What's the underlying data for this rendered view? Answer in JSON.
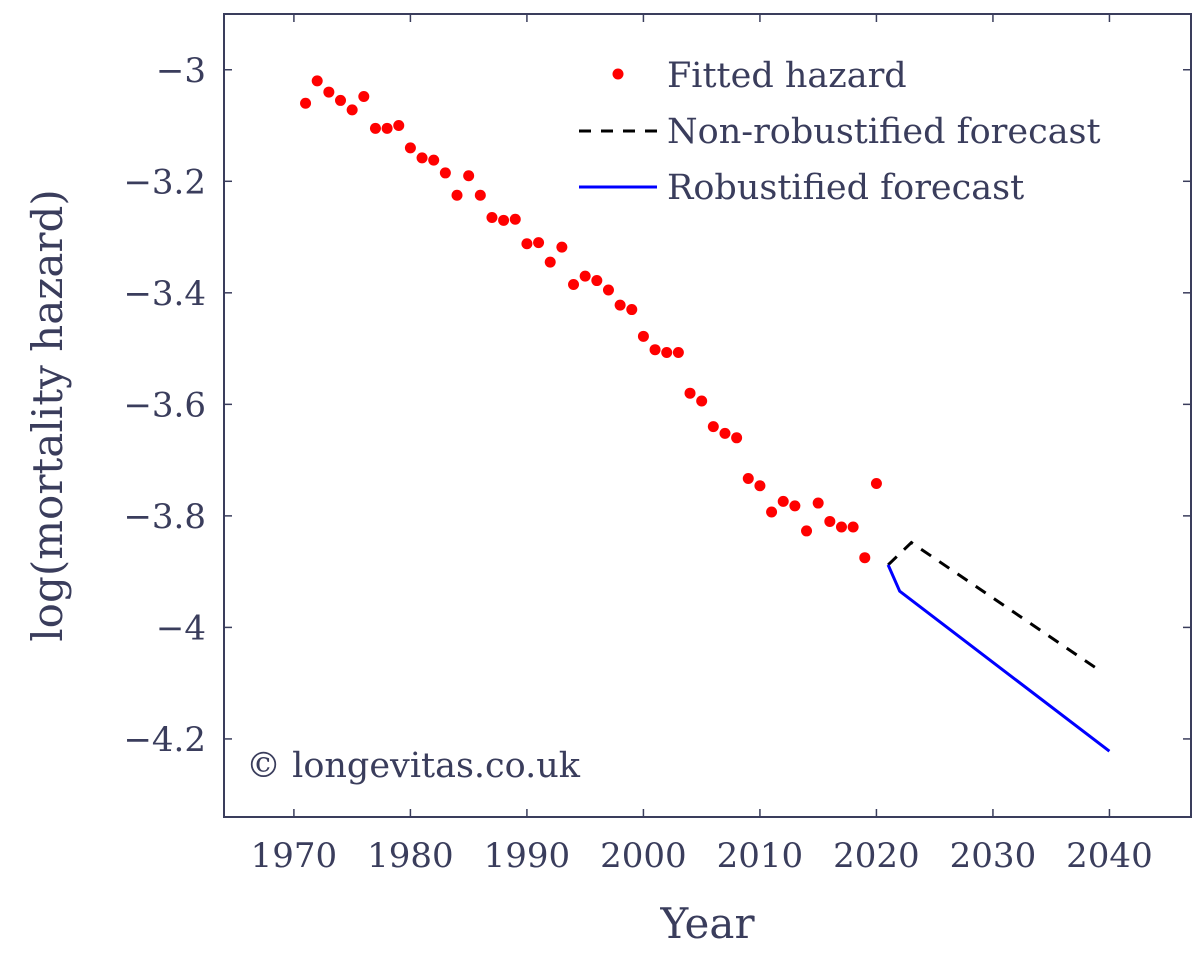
{
  "chart_data": {
    "type": "scatter",
    "title": "",
    "xlabel": "Year",
    "ylabel": "log(mortality hazard)",
    "xlim": [
      1964,
      2047
    ],
    "ylim": [
      -4.34,
      -2.9
    ],
    "x_ticks": [
      1970,
      1980,
      1990,
      2000,
      2010,
      2020,
      2030,
      2040
    ],
    "y_ticks": [
      -3,
      -3.2,
      -3.4,
      -3.6,
      -3.8,
      -4,
      -4.2
    ],
    "y_tick_labels": [
      "−3",
      "−3.2",
      "−3.4",
      "−3.6",
      "−3.8",
      "−4",
      "−4.2"
    ],
    "grid": false,
    "legend_position": "top-right",
    "series": [
      {
        "name": "Fitted hazard",
        "style": "markers",
        "color": "#ff0000",
        "x": [
          1971,
          1972,
          1973,
          1974,
          1975,
          1976,
          1977,
          1978,
          1979,
          1980,
          1981,
          1982,
          1983,
          1984,
          1985,
          1986,
          1987,
          1988,
          1989,
          1990,
          1991,
          1992,
          1993,
          1994,
          1995,
          1996,
          1997,
          1998,
          1999,
          2000,
          2001,
          2002,
          2003,
          2004,
          2005,
          2006,
          2007,
          2008,
          2009,
          2010,
          2011,
          2012,
          2013,
          2014,
          2015,
          2016,
          2017,
          2018,
          2019,
          2020
        ],
        "y": [
          -3.06,
          -3.02,
          -3.04,
          -3.055,
          -3.072,
          -3.048,
          -3.105,
          -3.105,
          -3.1,
          -3.14,
          -3.158,
          -3.162,
          -3.185,
          -3.225,
          -3.19,
          -3.225,
          -3.265,
          -3.27,
          -3.268,
          -3.312,
          -3.31,
          -3.345,
          -3.318,
          -3.385,
          -3.37,
          -3.378,
          -3.395,
          -3.422,
          -3.43,
          -3.478,
          -3.502,
          -3.507,
          -3.507,
          -3.58,
          -3.594,
          -3.64,
          -3.652,
          -3.66,
          -3.733,
          -3.746,
          -3.793,
          -3.774,
          -3.782,
          -3.827,
          -3.777,
          -3.81,
          -3.82,
          -3.82,
          -3.875,
          -3.742
        ]
      },
      {
        "name": "Non-robustified forecast",
        "style": "dashed",
        "color": "#000000",
        "x": [
          2021,
          2023,
          2039
        ],
        "y": [
          -3.888,
          -3.848,
          -4.075
        ]
      },
      {
        "name": "Robustified forecast",
        "style": "solid",
        "color": "#0000ff",
        "x": [
          2021,
          2022,
          2040
        ],
        "y": [
          -3.888,
          -3.935,
          -4.222
        ]
      }
    ],
    "annotations": [
      "© longevitas.co.uk"
    ]
  }
}
